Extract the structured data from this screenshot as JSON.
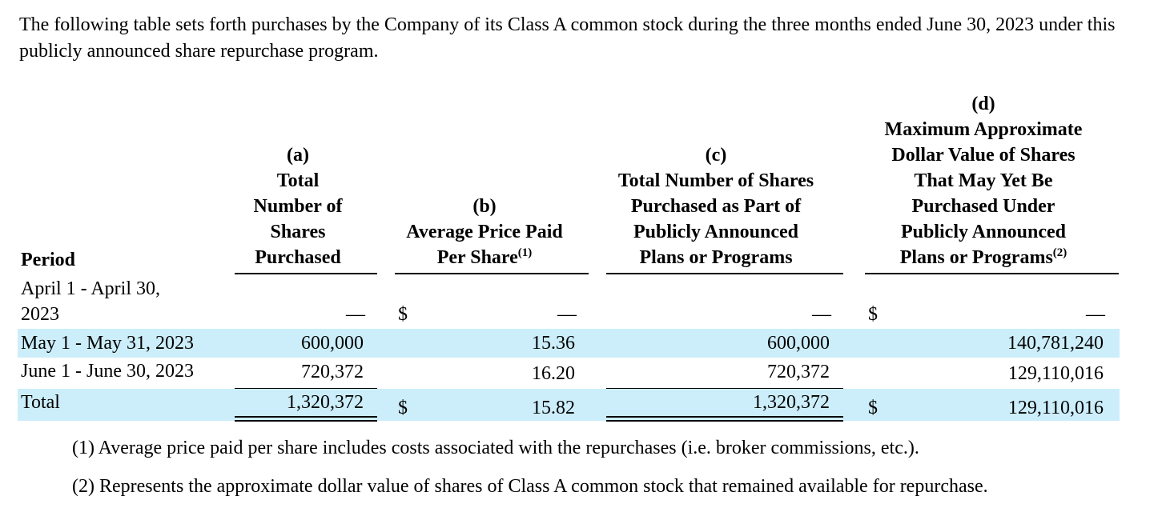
{
  "intro": "The following table sets forth purchases by the Company of its Class A common stock during the three months ended June 30, 2023 under this publicly announced share repurchase program.",
  "table": {
    "headers": {
      "period": "Period",
      "a": [
        "(a)",
        "Total",
        "Number of",
        "Shares",
        "Purchased"
      ],
      "b": [
        "(b)",
        "Average Price Paid",
        "Per Share"
      ],
      "b_sup": "(1)",
      "c": [
        "(c)",
        "Total Number of Shares",
        "Purchased as Part of",
        "Publicly Announced",
        "Plans or Programs"
      ],
      "d": [
        "(d)",
        "Maximum Approximate",
        "Dollar Value of Shares",
        "That May Yet Be",
        "Purchased Under",
        "Publicly Announced",
        "Plans or Programs"
      ],
      "d_sup": "(2)"
    },
    "rows": [
      {
        "period_lines": [
          "April 1 - April 30,",
          "2023"
        ],
        "a": "—",
        "b_dollar": "$",
        "b": "—",
        "c": "—",
        "d_dollar": "$",
        "d": "—"
      },
      {
        "period": "May 1 - May 31, 2023",
        "a": "600,000",
        "b": "15.36",
        "c": "600,000",
        "d": "140,781,240"
      },
      {
        "period": "June 1 - June 30, 2023",
        "a": "720,372",
        "b": "16.20",
        "c": "720,372",
        "d": "129,110,016"
      },
      {
        "period": "Total",
        "a": "1,320,372",
        "b_dollar": "$",
        "b": "15.82",
        "c": "1,320,372",
        "d_dollar": "$",
        "d": "129,110,016"
      }
    ]
  },
  "footnotes": [
    "(1) Average price paid per share includes costs associated with the repurchases (i.e. broker commissions, etc.).",
    "(2) Represents the approximate dollar value of shares of Class A common stock that remained available for repurchase."
  ]
}
